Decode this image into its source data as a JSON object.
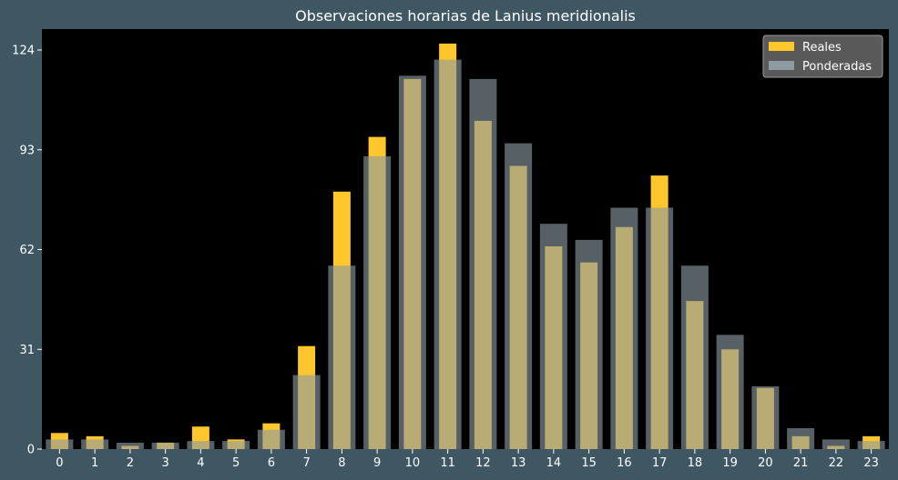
{
  "chart_data": {
    "type": "bar",
    "title": "Observaciones horarias de Lanius meridionalis",
    "xlabel": "",
    "ylabel": "",
    "categories": [
      "0",
      "1",
      "2",
      "3",
      "4",
      "5",
      "6",
      "7",
      "8",
      "9",
      "10",
      "11",
      "12",
      "13",
      "14",
      "15",
      "16",
      "17",
      "18",
      "19",
      "20",
      "21",
      "22",
      "23"
    ],
    "series": [
      {
        "name": "Reales",
        "color": "#ffc72c",
        "values": [
          5,
          4,
          1,
          2,
          7,
          3,
          8,
          32,
          80,
          97,
          115,
          126,
          102,
          88,
          63,
          58,
          69,
          85,
          46,
          31,
          19,
          4,
          1,
          4
        ]
      },
      {
        "name": "Ponderadas",
        "color": "#8d9ba1",
        "values": [
          3,
          3,
          2,
          2,
          2.5,
          2.5,
          6,
          23,
          57,
          91,
          116,
          121,
          115,
          95,
          70,
          65,
          75,
          75,
          57,
          35.5,
          19.5,
          6.5,
          3,
          2.5
        ]
      }
    ],
    "yticks": [
      0,
      31,
      62,
      93,
      124
    ],
    "ylim": [
      0,
      130.5
    ],
    "grid": false,
    "legend_position": "top-right"
  },
  "colors": {
    "page_background": "#3f5763",
    "plot_background": "#000000",
    "legend_background": "#595959",
    "legend_border": "#9a9a9a"
  }
}
